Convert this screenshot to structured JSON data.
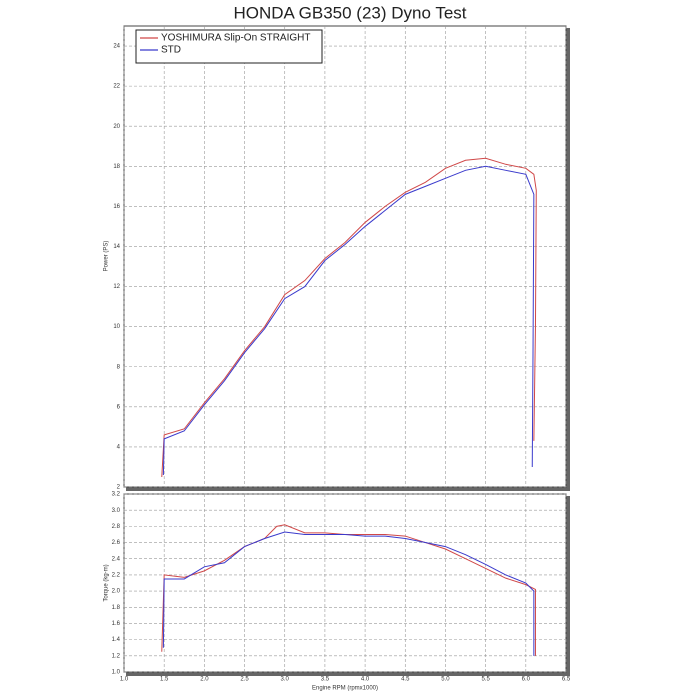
{
  "chart_data": [
    {
      "type": "line",
      "title": "HONDA GB350 (23) Dyno Test",
      "ylabel": "Power (PS)",
      "xlim": [
        1,
        6.5
      ],
      "ylim": [
        2,
        25
      ],
      "yticks": [
        2,
        4,
        6,
        8,
        10,
        12,
        14,
        16,
        18,
        20,
        22,
        24
      ],
      "grid": true,
      "legend": "upper left",
      "series": [
        {
          "name": "YOSHIMURA Slip-On STRAIGHT",
          "color": "#d04848",
          "x": [
            1.47,
            1.5,
            1.75,
            2.0,
            2.25,
            2.5,
            2.75,
            3.0,
            3.25,
            3.5,
            3.75,
            4.0,
            4.25,
            4.5,
            4.75,
            5.0,
            5.25,
            5.5,
            5.75,
            6.0,
            6.1,
            6.13,
            6.12,
            6.1
          ],
          "values": [
            2.5,
            4.6,
            4.9,
            6.2,
            7.4,
            8.8,
            10.0,
            11.6,
            12.3,
            13.4,
            14.2,
            15.2,
            16.0,
            16.7,
            17.2,
            17.9,
            18.3,
            18.4,
            18.1,
            17.9,
            17.6,
            16.8,
            10.0,
            4.3
          ]
        },
        {
          "name": "STD",
          "color": "#3a3acc",
          "x": [
            1.49,
            1.5,
            1.75,
            2.0,
            2.25,
            2.5,
            2.75,
            3.0,
            3.25,
            3.5,
            3.75,
            4.0,
            4.25,
            4.5,
            4.75,
            5.0,
            5.25,
            5.5,
            5.75,
            6.0,
            6.1,
            6.09,
            6.08
          ],
          "values": [
            2.6,
            4.4,
            4.8,
            6.1,
            7.3,
            8.7,
            9.9,
            11.4,
            12.0,
            13.3,
            14.1,
            15.0,
            15.8,
            16.6,
            17.0,
            17.4,
            17.8,
            18.0,
            17.8,
            17.6,
            16.6,
            9.0,
            3.0
          ]
        }
      ]
    },
    {
      "type": "line",
      "ylabel": "Torque (kg-m)",
      "xlabel": "Engine RPM (rpmx1000)",
      "xlim": [
        1,
        6.5
      ],
      "xticks": [
        {
          "value": 1,
          "label": "1.0"
        },
        1.5,
        {
          "value": 2,
          "label": "2.0"
        },
        2.5,
        {
          "value": 3,
          "label": "3.0"
        },
        3.5,
        {
          "value": 4,
          "label": "4.0"
        },
        4.5,
        {
          "value": 5,
          "label": "5.0"
        },
        5.5,
        {
          "value": 6,
          "label": "6.0"
        },
        6.5
      ],
      "ylim": [
        1,
        3.2
      ],
      "yticks": [
        {
          "value": 1,
          "label": "1.0"
        },
        1.2,
        1.4,
        1.6,
        1.8,
        {
          "value": 2,
          "label": "2.0"
        },
        2.2,
        2.4,
        2.6,
        2.8,
        {
          "value": 3,
          "label": "3.0"
        },
        3.2
      ],
      "grid": true,
      "series": [
        {
          "color": "#d04848",
          "x": [
            1.47,
            1.5,
            1.75,
            2.0,
            2.25,
            2.5,
            2.75,
            2.9,
            3.0,
            3.25,
            3.5,
            3.75,
            4.0,
            4.25,
            4.5,
            4.75,
            5.0,
            5.25,
            5.5,
            5.75,
            6.0,
            6.12,
            6.12
          ],
          "values": [
            1.25,
            2.2,
            2.17,
            2.25,
            2.38,
            2.55,
            2.65,
            2.8,
            2.82,
            2.72,
            2.72,
            2.7,
            2.7,
            2.7,
            2.68,
            2.6,
            2.52,
            2.4,
            2.28,
            2.16,
            2.08,
            2.02,
            1.2
          ]
        },
        {
          "color": "#3a3acc",
          "x": [
            1.49,
            1.5,
            1.75,
            2.0,
            2.25,
            2.5,
            2.75,
            3.0,
            3.25,
            3.5,
            3.75,
            4.0,
            4.25,
            4.5,
            4.75,
            5.0,
            5.25,
            5.5,
            5.75,
            6.0,
            6.1,
            6.1
          ],
          "values": [
            1.3,
            2.15,
            2.15,
            2.3,
            2.35,
            2.55,
            2.65,
            2.73,
            2.7,
            2.7,
            2.7,
            2.68,
            2.68,
            2.65,
            2.6,
            2.55,
            2.45,
            2.33,
            2.2,
            2.1,
            2.0,
            1.2
          ]
        }
      ]
    }
  ]
}
